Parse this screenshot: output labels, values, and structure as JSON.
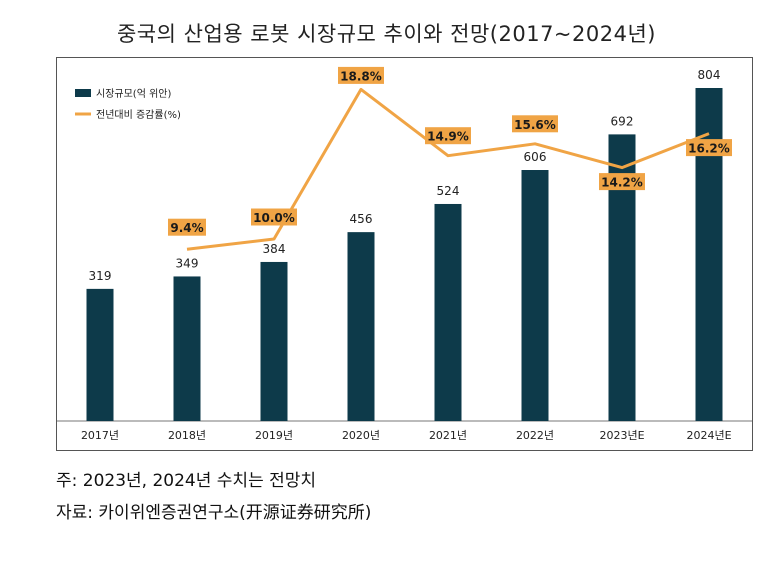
{
  "chart_data": {
    "type": "bar+line",
    "title": "중국의 산업용 로봇 시장규모 추이와 전망(2017~2024년)",
    "categories": [
      "2017년",
      "2018년",
      "2019년",
      "2020년",
      "2021년",
      "2022년",
      "2023년E",
      "2024년E"
    ],
    "series": [
      {
        "name": "시장규모(억 위안)",
        "kind": "bar",
        "color": "#0d3a4a",
        "values": [
          319,
          349,
          384,
          456,
          524,
          606,
          692,
          804
        ],
        "labels": [
          "319",
          "349",
          "384",
          "456",
          "524",
          "606",
          "692",
          "804"
        ]
      },
      {
        "name": "전년대비 증감률(%)",
        "kind": "line",
        "color": "#f0a445",
        "values": [
          null,
          9.4,
          10.0,
          18.8,
          14.9,
          15.6,
          14.2,
          16.2
        ],
        "labels": [
          "",
          "9.4%",
          "10.0%",
          "18.8%",
          "14.9%",
          "15.6%",
          "14.2%",
          "16.2%"
        ]
      }
    ],
    "legend": "top-left",
    "grid": false,
    "ylim_bar": [
      0,
      860
    ],
    "ylim_line": [
      0,
      20
    ]
  },
  "notes": {
    "note": "주: 2023년, 2024년 수치는 전망치",
    "source": "자료: 카이위엔증권연구소(开源证券研究所)"
  }
}
